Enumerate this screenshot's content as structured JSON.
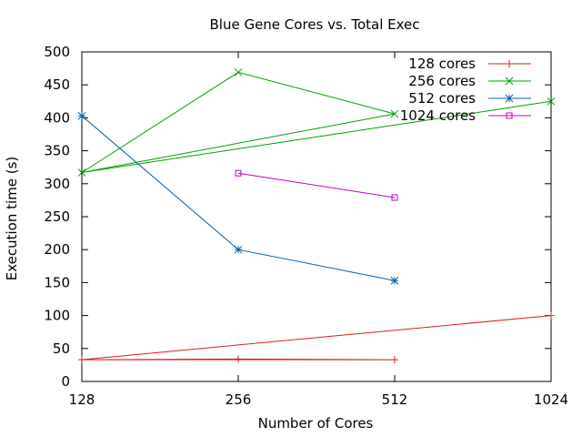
{
  "chart_data": {
    "type": "line",
    "title": "Blue Gene Cores vs. Total Exec",
    "xlabel": "Number of Cores",
    "ylabel": "Execution time (s)",
    "x_ticks": [
      "128",
      "256",
      "512",
      "1024"
    ],
    "y_ticks": [
      0,
      50,
      100,
      150,
      200,
      250,
      300,
      350,
      400,
      450,
      500
    ],
    "ylim": [
      0,
      500
    ],
    "xlim": [
      128,
      1024
    ],
    "x_scale": "log2",
    "grid": false,
    "legend_position": "top-right",
    "series": [
      {
        "name": "128 cores",
        "color": "#e41a1c",
        "marker": "plus",
        "points": [
          [
            128,
            33
          ],
          [
            256,
            34
          ],
          [
            512,
            33
          ],
          [
            128,
            33
          ],
          [
            1024,
            100
          ]
        ]
      },
      {
        "name": "256 cores",
        "color": "#00a000",
        "marker": "cross",
        "points": [
          [
            128,
            317
          ],
          [
            256,
            469
          ],
          [
            512,
            406
          ],
          [
            128,
            317
          ],
          [
            1024,
            425
          ]
        ]
      },
      {
        "name": "512 cores",
        "color": "#0060ad",
        "marker": "star",
        "points": [
          [
            128,
            403
          ],
          [
            256,
            200
          ],
          [
            512,
            153
          ]
        ]
      },
      {
        "name": "1024 cores",
        "color": "#c000c0",
        "marker": "square",
        "points": [
          [
            256,
            316
          ],
          [
            512,
            279
          ]
        ]
      }
    ]
  }
}
